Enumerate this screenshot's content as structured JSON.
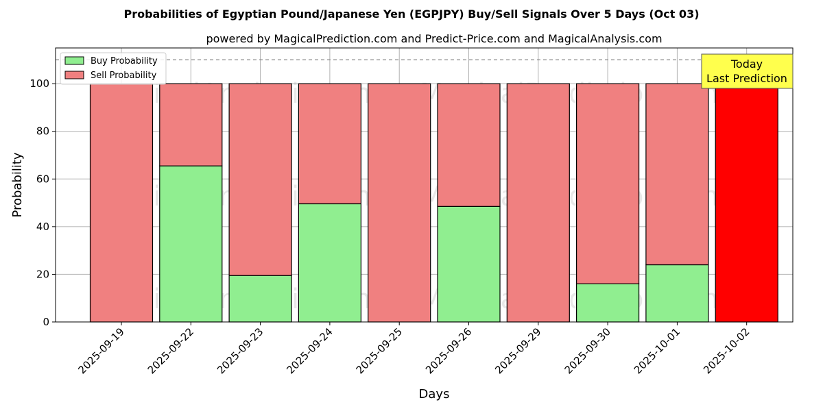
{
  "chart_data": {
    "type": "bar",
    "stacked": true,
    "title": "Probabilities of Egyptian Pound/Japanese Yen (EGPJPY) Buy/Sell Signals Over 5 Days (Oct 03)",
    "subtitle": "powered by MagicalPrediction.com and Predict-Price.com and MagicalAnalysis.com",
    "xlabel": "Days",
    "ylabel": "Probability",
    "ylim": [
      0,
      115
    ],
    "yticks": [
      0,
      20,
      40,
      60,
      80,
      100
    ],
    "reference_line": 110,
    "grid": true,
    "legend_position": "top-left",
    "categories": [
      "2025-09-19",
      "2025-09-22",
      "2025-09-23",
      "2025-09-24",
      "2025-09-25",
      "2025-09-26",
      "2025-09-29",
      "2025-09-30",
      "2025-10-01",
      "2025-10-02"
    ],
    "series": [
      {
        "name": "Buy Probability",
        "color": "#90ee90",
        "values": [
          0,
          65.5,
          19.5,
          49.6,
          0,
          48.5,
          0,
          16,
          24,
          0
        ]
      },
      {
        "name": "Sell Probability",
        "color": "#f08080",
        "values": [
          100,
          34.5,
          80.5,
          50.4,
          100,
          51.5,
          100,
          84,
          76,
          100
        ]
      }
    ],
    "highlight": {
      "index": 9,
      "color": "#ff0000"
    },
    "annotation": {
      "lines": [
        "Today",
        "Last Prediction"
      ],
      "bg": "#ffff4d"
    },
    "watermarks": [
      "MagicalAnalysis.com",
      "MagicalPrediction.com"
    ]
  }
}
